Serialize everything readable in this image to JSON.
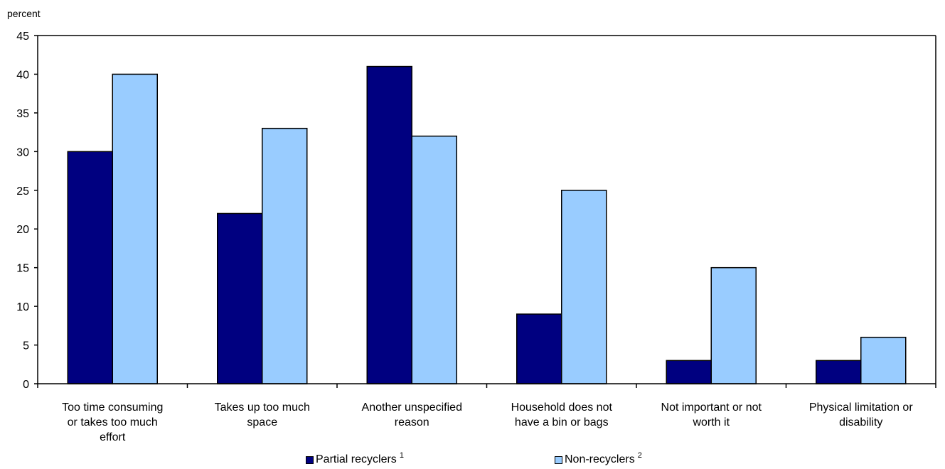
{
  "chart_data": {
    "type": "bar",
    "ylabel": "percent",
    "ylim": [
      0,
      45
    ],
    "yticks": [
      0,
      5,
      10,
      15,
      20,
      25,
      30,
      35,
      40,
      45
    ],
    "categories": [
      [
        "Too time consuming",
        "or takes too much",
        "effort"
      ],
      [
        "Takes up too much",
        "space"
      ],
      [
        "Another unspecified",
        "reason"
      ],
      [
        "Household does not",
        "have a bin or bags"
      ],
      [
        "Not important or not",
        "worth it"
      ],
      [
        "Physical limitation or",
        "disability"
      ]
    ],
    "series": [
      {
        "name": "Partial recyclers",
        "note": "1",
        "color": "#000080",
        "values": [
          30,
          22,
          41,
          9,
          3,
          3
        ]
      },
      {
        "name": "Non-recyclers",
        "note": "2",
        "color": "#99ccff",
        "values": [
          40,
          33,
          32,
          25,
          15,
          6
        ]
      }
    ],
    "legend_position": "bottom"
  }
}
